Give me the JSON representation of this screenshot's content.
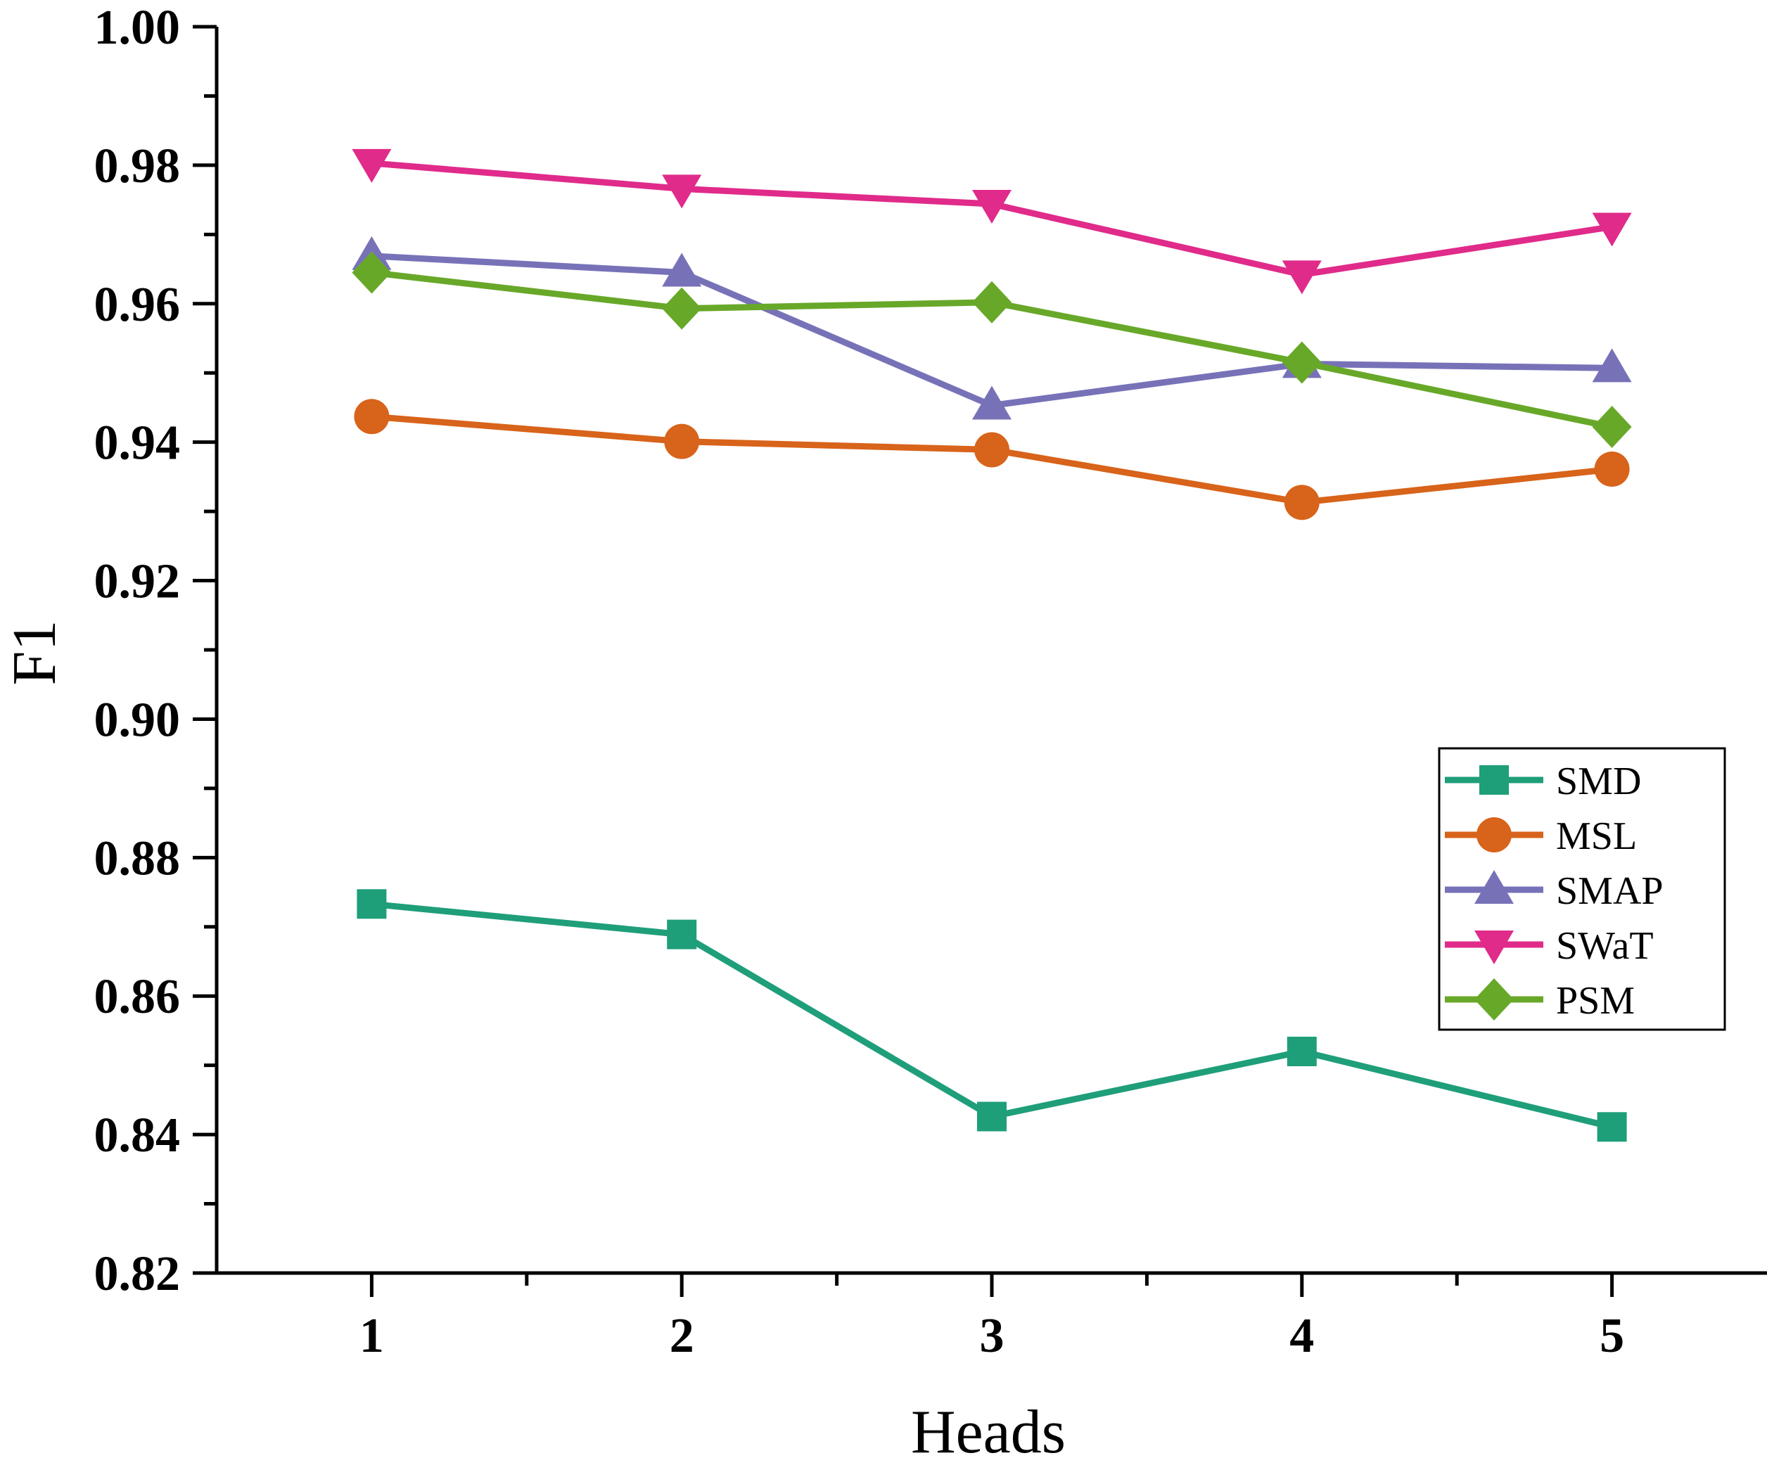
{
  "chart_data": {
    "type": "line",
    "title": "",
    "xlabel": "Heads",
    "ylabel": "F1",
    "x": [
      1,
      2,
      3,
      4,
      5
    ],
    "xlim": [
      0.5,
      5.5
    ],
    "ylim": [
      0.82,
      1.0
    ],
    "yticks": [
      "0.82",
      "0.84",
      "0.86",
      "0.88",
      "0.90",
      "0.92",
      "0.94",
      "0.96",
      "0.98",
      "1.00"
    ],
    "xticks": [
      "1",
      "2",
      "3",
      "4",
      "5"
    ],
    "legend_position": "right",
    "series": [
      {
        "name": "SMD",
        "color": "#1f9e7a",
        "marker": "square",
        "values": [
          0.8733,
          0.8689,
          0.8426,
          0.852,
          0.8411
        ]
      },
      {
        "name": "MSL",
        "color": "#d8631a",
        "marker": "circle",
        "values": [
          0.9437,
          0.9401,
          0.9389,
          0.9313,
          0.9361
        ]
      },
      {
        "name": "SMAP",
        "color": "#7772b8",
        "marker": "triangle-up",
        "values": [
          0.9669,
          0.9645,
          0.9453,
          0.9513,
          0.9507
        ]
      },
      {
        "name": "SWaT",
        "color": "#e02b8a",
        "marker": "triangle-down",
        "values": [
          0.9803,
          0.9766,
          0.9744,
          0.9642,
          0.9711
        ]
      },
      {
        "name": "PSM",
        "color": "#68a829",
        "marker": "diamond",
        "values": [
          0.9645,
          0.9593,
          0.9602,
          0.9515,
          0.9422
        ]
      }
    ]
  }
}
